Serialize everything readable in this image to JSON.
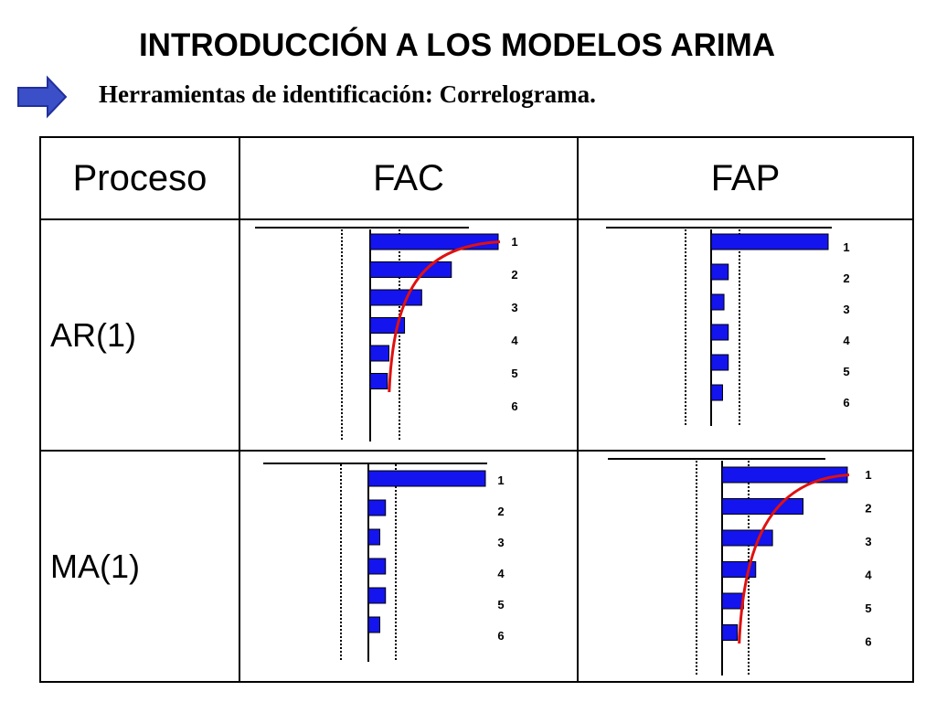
{
  "header": {
    "title": "INTRODUCCIÓN A LOS MODELOS ARIMA",
    "subtitle": "Herramientas de identificación: Correlograma."
  },
  "table": {
    "columns": [
      "Proceso",
      "FAC",
      "FAP"
    ],
    "rows": [
      {
        "label": "AR(1)"
      },
      {
        "label": "MA(1)"
      }
    ]
  },
  "colors": {
    "bar": "#1414ee",
    "curve": "#e01010",
    "arrow": "#3a4fc8"
  },
  "chart_data": [
    {
      "type": "bar",
      "process": "AR(1)",
      "function": "FAC",
      "categories": [
        "1",
        "2",
        "3",
        "4",
        "5",
        "6"
      ],
      "values": [
        0.82,
        0.52,
        0.33,
        0.22,
        0.12,
        0.11
      ],
      "curve": true
    },
    {
      "type": "bar",
      "process": "AR(1)",
      "function": "FAP",
      "categories": [
        "1",
        "2",
        "3",
        "4",
        "5",
        "6"
      ],
      "values": [
        0.82,
        0.12,
        0.09,
        0.12,
        0.12,
        0.08
      ],
      "curve": false
    },
    {
      "type": "bar",
      "process": "MA(1)",
      "function": "FAC",
      "categories": [
        "1",
        "2",
        "3",
        "4",
        "5",
        "6"
      ],
      "values": [
        0.82,
        0.12,
        0.08,
        0.12,
        0.12,
        0.08
      ],
      "curve": false
    },
    {
      "type": "bar",
      "process": "MA(1)",
      "function": "FAP",
      "categories": [
        "1",
        "2",
        "3",
        "4",
        "5",
        "6"
      ],
      "values": [
        0.82,
        0.53,
        0.33,
        0.22,
        0.14,
        0.1
      ],
      "curve": true
    }
  ]
}
